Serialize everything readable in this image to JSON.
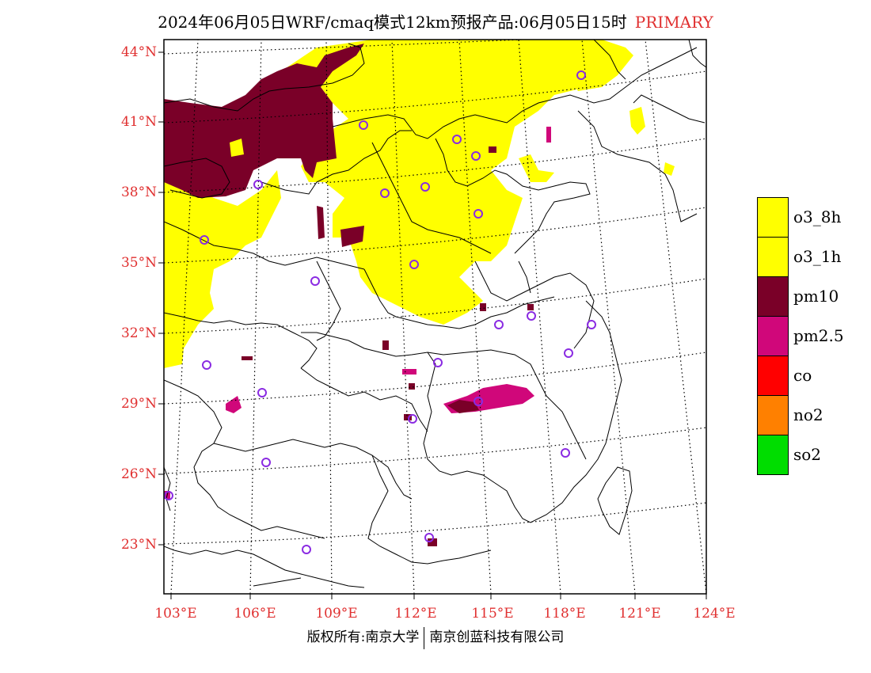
{
  "title": {
    "main": "2024年06月05日WRF/cmaq模式12km预报产品:06月05日15时",
    "tag": "PRIMARY"
  },
  "axes": {
    "lat_labels": [
      "44°N",
      "41°N",
      "38°N",
      "35°N",
      "32°N",
      "29°N",
      "26°N",
      "23°N"
    ],
    "lon_labels": [
      "103°E",
      "106°E",
      "109°E",
      "112°E",
      "115°E",
      "118°E",
      "121°E",
      "124°E"
    ]
  },
  "legend": [
    {
      "label": "o3_8h",
      "color": "#ffff00"
    },
    {
      "label": "o3_1h",
      "color": "#ffff00"
    },
    {
      "label": "pm10",
      "color": "#7a0028"
    },
    {
      "label": "pm2.5",
      "color": "#d0077a"
    },
    {
      "label": "co",
      "color": "#ff0000"
    },
    {
      "label": "no2",
      "color": "#ff8000"
    },
    {
      "label": "so2",
      "color": "#00dd00"
    }
  ],
  "credit": {
    "left": "版权所有:南京大学",
    "right": "南京创蓝科技有限公司"
  },
  "map": {
    "station_marker_color": "#8a2be2",
    "border_color": "#000000",
    "graticule": "dotted"
  }
}
